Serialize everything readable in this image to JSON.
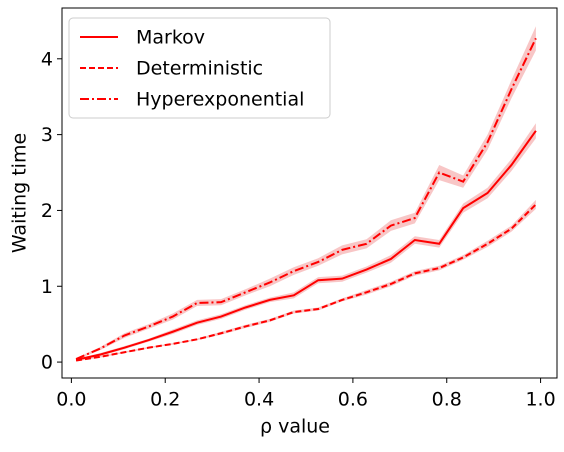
{
  "chart_data": {
    "type": "line",
    "xlabel": "ρ value",
    "ylabel": "Waiting time",
    "x": [
      0.01,
      0.062,
      0.113,
      0.165,
      0.216,
      0.268,
      0.319,
      0.371,
      0.423,
      0.474,
      0.526,
      0.577,
      0.629,
      0.681,
      0.732,
      0.784,
      0.835,
      0.887,
      0.938,
      0.99
    ],
    "series": [
      {
        "name": "Markov",
        "color": "#ff0000",
        "linestyle": "solid",
        "values": [
          0.03,
          0.1,
          0.19,
          0.29,
          0.4,
          0.52,
          0.6,
          0.72,
          0.82,
          0.88,
          1.08,
          1.1,
          1.22,
          1.36,
          1.61,
          1.56,
          2.03,
          2.23,
          2.6,
          3.05
        ],
        "errors": [
          0.01,
          0.02,
          0.02,
          0.02,
          0.03,
          0.03,
          0.03,
          0.03,
          0.03,
          0.04,
          0.04,
          0.04,
          0.04,
          0.05,
          0.05,
          0.05,
          0.06,
          0.07,
          0.08,
          0.1
        ]
      },
      {
        "name": "Deterministic",
        "color": "#ff0000",
        "linestyle": "dashed",
        "values": [
          0.02,
          0.07,
          0.13,
          0.19,
          0.24,
          0.3,
          0.38,
          0.47,
          0.55,
          0.66,
          0.7,
          0.82,
          0.92,
          1.03,
          1.17,
          1.24,
          1.38,
          1.56,
          1.76,
          2.08
        ],
        "errors": [
          0.01,
          0.01,
          0.01,
          0.01,
          0.01,
          0.01,
          0.02,
          0.02,
          0.02,
          0.02,
          0.02,
          0.02,
          0.03,
          0.03,
          0.03,
          0.03,
          0.03,
          0.04,
          0.04,
          0.06
        ]
      },
      {
        "name": "Hyperexponential",
        "color": "#ff0000",
        "linestyle": "dashdot",
        "values": [
          0.04,
          0.18,
          0.35,
          0.47,
          0.6,
          0.78,
          0.79,
          0.92,
          1.05,
          1.2,
          1.32,
          1.48,
          1.56,
          1.8,
          1.9,
          2.5,
          2.38,
          2.9,
          3.6,
          4.27
        ],
        "errors": [
          0.01,
          0.02,
          0.03,
          0.03,
          0.04,
          0.04,
          0.04,
          0.04,
          0.05,
          0.05,
          0.05,
          0.06,
          0.06,
          0.07,
          0.07,
          0.1,
          0.08,
          0.1,
          0.12,
          0.16
        ]
      }
    ],
    "band_color": "#f4a0a0",
    "xlim": [
      -0.02,
      1.035
    ],
    "ylim": [
      -0.21,
      4.67
    ],
    "xticks": [
      {
        "value": 0,
        "label": "0.0"
      },
      0.2,
      0.4,
      0.6,
      0.8,
      {
        "value": 1,
        "label": "1.0"
      }
    ],
    "yticks": [
      0,
      1,
      2,
      3,
      4
    ],
    "grid": false,
    "legend": "upper left"
  }
}
